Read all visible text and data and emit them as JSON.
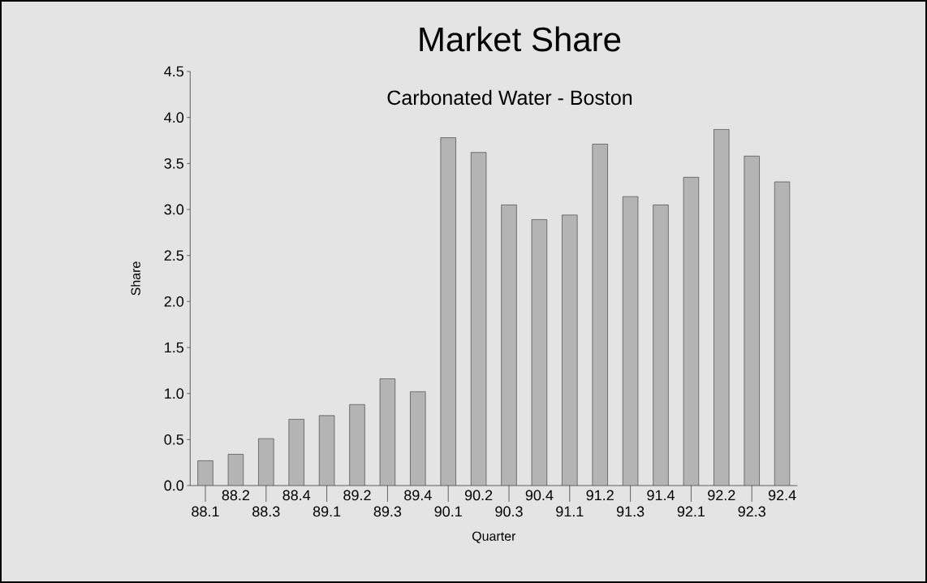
{
  "chart_data": {
    "type": "bar",
    "title": "Market Share",
    "subtitle": "Carbonated Water - Boston",
    "xlabel": "Quarter",
    "ylabel": "Share",
    "categories": [
      "88.1",
      "88.2",
      "88.3",
      "88.4",
      "89.1",
      "89.2",
      "89.3",
      "89.4",
      "90.1",
      "90.2",
      "90.3",
      "90.4",
      "91.1",
      "91.2",
      "91.3",
      "91.4",
      "92.1",
      "92.2",
      "92.3",
      "92.4"
    ],
    "values": [
      0.27,
      0.34,
      0.51,
      0.72,
      0.76,
      0.88,
      1.16,
      1.02,
      3.78,
      3.62,
      3.05,
      2.89,
      2.94,
      3.71,
      3.14,
      3.05,
      3.35,
      3.87,
      3.58,
      3.3
    ],
    "color": "#b4b4b4",
    "ylim": [
      0,
      4.5
    ],
    "yticks": [
      {
        "value": 0,
        "label": "0.0"
      },
      {
        "value": 0.5,
        "label": "0.5"
      },
      {
        "value": 1,
        "label": "1.0"
      },
      {
        "value": 1.5,
        "label": "1.5"
      },
      {
        "value": 2,
        "label": "2.0"
      },
      {
        "value": 2.5,
        "label": "2.5"
      },
      {
        "value": 3,
        "label": "3.0"
      },
      {
        "value": 3.5,
        "label": "3.5"
      },
      {
        "value": 4,
        "label": "4.0"
      },
      {
        "value": 4.5,
        "label": "4.5"
      }
    ]
  }
}
